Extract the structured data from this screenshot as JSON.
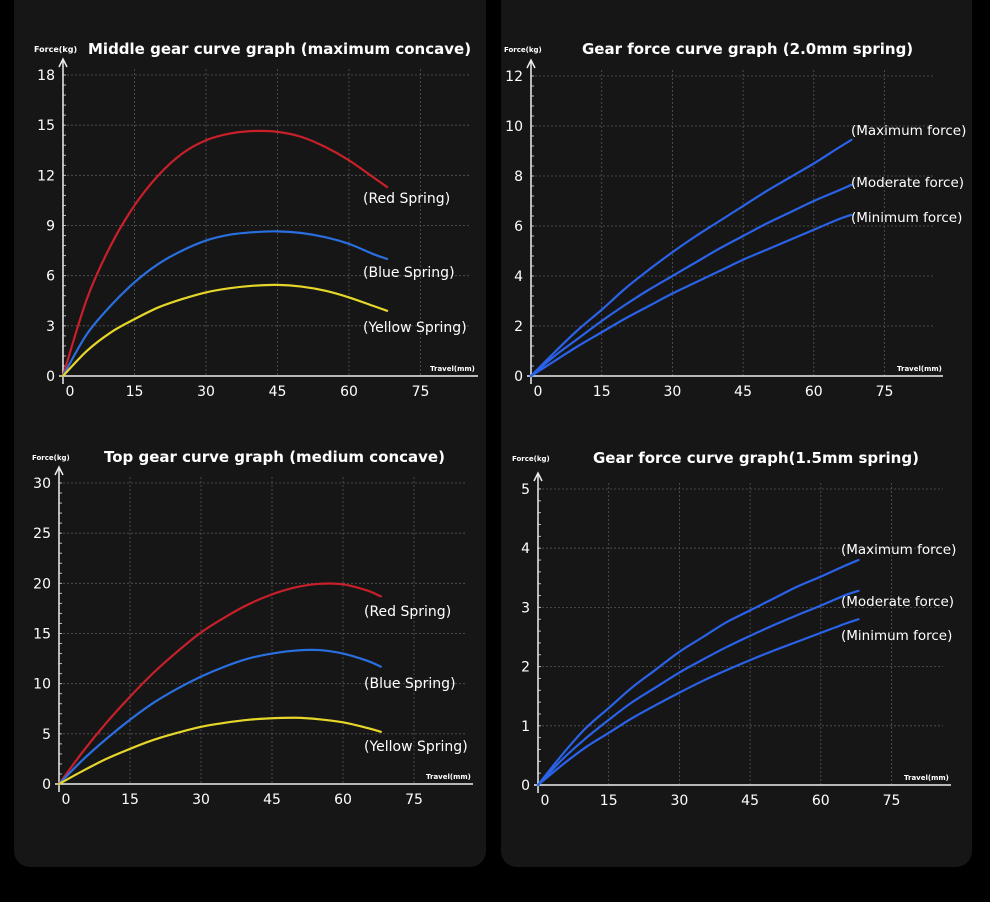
{
  "chart_data": [
    {
      "id": "c1",
      "type": "line",
      "title": "Middle gear curve graph (maximum concave)",
      "ylabel": "Force(kg)",
      "xlabel": "Travel(mm)",
      "xticks": [
        0,
        15,
        30,
        45,
        60,
        75
      ],
      "yticks": [
        0,
        3,
        6,
        9,
        12,
        15,
        18
      ],
      "xlim": [
        0,
        87
      ],
      "ylim": [
        0,
        18
      ],
      "grid": true,
      "x": [
        0,
        5,
        10,
        15,
        20,
        25,
        30,
        35,
        40,
        45,
        50,
        55,
        60,
        65,
        68
      ],
      "series": [
        {
          "name": "(Red Spring)",
          "color": "#c8202a",
          "values": [
            0,
            4.6,
            7.8,
            10.2,
            12.0,
            13.3,
            14.1,
            14.5,
            14.65,
            14.6,
            14.3,
            13.7,
            12.9,
            11.9,
            11.3
          ]
        },
        {
          "name": "(Blue Spring)",
          "color": "#2a6fe0",
          "values": [
            0,
            2.5,
            4.2,
            5.6,
            6.7,
            7.5,
            8.1,
            8.45,
            8.6,
            8.65,
            8.55,
            8.3,
            7.9,
            7.3,
            7.0
          ]
        },
        {
          "name": "(Yellow Spring)",
          "color": "#e6d62a",
          "values": [
            0,
            1.5,
            2.6,
            3.4,
            4.1,
            4.6,
            5.0,
            5.25,
            5.4,
            5.45,
            5.35,
            5.1,
            4.7,
            4.2,
            3.9
          ]
        }
      ]
    },
    {
      "id": "c2",
      "type": "line",
      "title": "Gear force curve graph (2.0mm spring)",
      "ylabel": "Force(kg)",
      "xlabel": "Travel(mm)",
      "xticks": [
        0,
        15,
        30,
        45,
        60,
        75
      ],
      "yticks": [
        0,
        2,
        4,
        6,
        8,
        10,
        12
      ],
      "xlim": [
        0,
        87
      ],
      "ylim": [
        0,
        12
      ],
      "grid": true,
      "x": [
        0,
        5,
        10,
        15,
        20,
        25,
        30,
        35,
        40,
        45,
        50,
        55,
        60,
        65,
        68
      ],
      "series": [
        {
          "name": "(Maximum force)",
          "color": "#2a62e8",
          "values": [
            0,
            0.95,
            1.85,
            2.65,
            3.5,
            4.25,
            4.95,
            5.6,
            6.2,
            6.8,
            7.4,
            7.95,
            8.5,
            9.1,
            9.45
          ]
        },
        {
          "name": "(Moderate force)",
          "color": "#2a62e8",
          "values": [
            0,
            0.8,
            1.5,
            2.2,
            2.85,
            3.45,
            4.0,
            4.55,
            5.1,
            5.6,
            6.1,
            6.55,
            7.0,
            7.4,
            7.65
          ]
        },
        {
          "name": "(Minimum force)",
          "color": "#2a62e8",
          "values": [
            0,
            0.6,
            1.2,
            1.75,
            2.3,
            2.8,
            3.3,
            3.75,
            4.2,
            4.65,
            5.05,
            5.45,
            5.85,
            6.25,
            6.45
          ]
        }
      ]
    },
    {
      "id": "c3",
      "type": "line",
      "title": "Top gear curve graph (medium concave)",
      "ylabel": "Force(kg)",
      "xlabel": "Travel(mm)",
      "xticks": [
        0,
        15,
        30,
        45,
        60,
        75
      ],
      "yticks": [
        0,
        5,
        10,
        15,
        20,
        25,
        30
      ],
      "xlim": [
        0,
        87
      ],
      "ylim": [
        0,
        30
      ],
      "grid": true,
      "x": [
        0,
        5,
        10,
        15,
        20,
        25,
        30,
        35,
        40,
        45,
        50,
        55,
        60,
        65,
        68
      ],
      "series": [
        {
          "name": "(Red Spring)",
          "color": "#c8202a",
          "values": [
            0,
            3.2,
            6.1,
            8.7,
            11.1,
            13.2,
            15.1,
            16.6,
            17.9,
            18.9,
            19.6,
            19.95,
            19.9,
            19.3,
            18.7
          ]
        },
        {
          "name": "(Blue Spring)",
          "color": "#2a6fe0",
          "values": [
            0,
            2.4,
            4.5,
            6.4,
            8.1,
            9.5,
            10.7,
            11.7,
            12.5,
            13.0,
            13.3,
            13.35,
            13.0,
            12.3,
            11.7
          ]
        },
        {
          "name": "(Yellow Spring)",
          "color": "#e6d62a",
          "values": [
            0,
            1.3,
            2.5,
            3.5,
            4.4,
            5.1,
            5.7,
            6.1,
            6.4,
            6.55,
            6.6,
            6.45,
            6.15,
            5.6,
            5.2
          ]
        }
      ]
    },
    {
      "id": "c4",
      "type": "line",
      "title": "Gear force curve graph(1.5mm spring)",
      "ylabel": "Force(kg)",
      "xlabel": "Travel(mm)",
      "xticks": [
        0,
        15,
        30,
        45,
        60,
        75
      ],
      "yticks": [
        0,
        1,
        2,
        3,
        4,
        5
      ],
      "xlim": [
        0,
        87
      ],
      "ylim": [
        0,
        5
      ],
      "grid": true,
      "x": [
        0,
        5,
        10,
        15,
        20,
        25,
        30,
        35,
        40,
        45,
        50,
        55,
        60,
        65,
        68
      ],
      "series": [
        {
          "name": "(Maximum force)",
          "color": "#2a62e8",
          "values": [
            0,
            0.5,
            0.95,
            1.3,
            1.65,
            1.95,
            2.25,
            2.5,
            2.75,
            2.95,
            3.15,
            3.35,
            3.52,
            3.7,
            3.8
          ]
        },
        {
          "name": "(Moderate force)",
          "color": "#2a62e8",
          "values": [
            0,
            0.42,
            0.78,
            1.1,
            1.4,
            1.65,
            1.9,
            2.12,
            2.33,
            2.52,
            2.7,
            2.87,
            3.03,
            3.2,
            3.28
          ]
        },
        {
          "name": "(Minimum force)",
          "color": "#2a62e8",
          "values": [
            0,
            0.33,
            0.63,
            0.88,
            1.13,
            1.35,
            1.56,
            1.76,
            1.94,
            2.11,
            2.27,
            2.42,
            2.57,
            2.72,
            2.8
          ]
        }
      ]
    }
  ]
}
